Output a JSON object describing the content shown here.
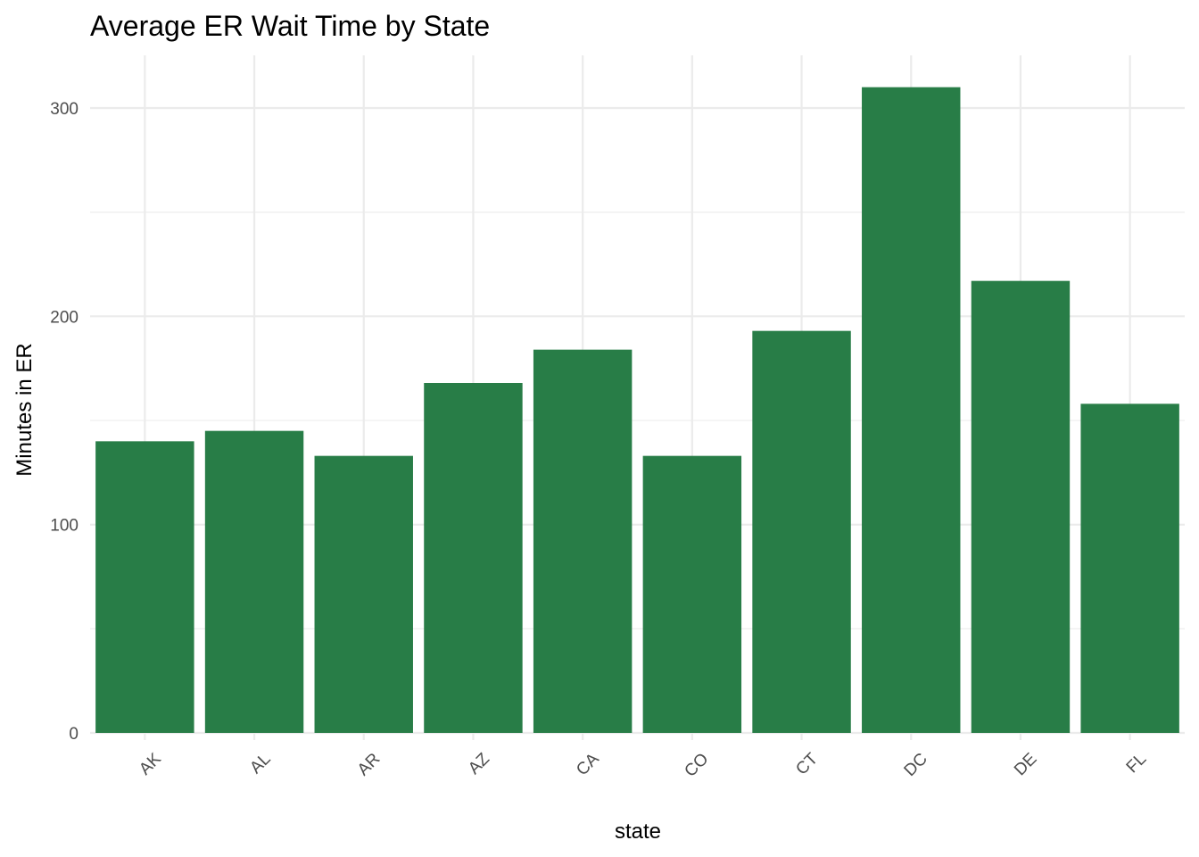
{
  "chart_data": {
    "type": "bar",
    "title": "Average ER Wait Time by State",
    "xlabel": "state",
    "ylabel": "Minutes in ER",
    "categories": [
      "AK",
      "AL",
      "AR",
      "AZ",
      "CA",
      "CO",
      "CT",
      "DC",
      "DE",
      "FL"
    ],
    "values": [
      140,
      145,
      133,
      168,
      184,
      133,
      193,
      310,
      217,
      158
    ],
    "ylim": [
      0,
      325
    ],
    "yticks": [
      0,
      100,
      200,
      300
    ],
    "yticks_minor": [
      50,
      150,
      250
    ],
    "grid": true,
    "legend": "none",
    "bar_color": "#287d47",
    "x_tick_rotation": 45
  }
}
